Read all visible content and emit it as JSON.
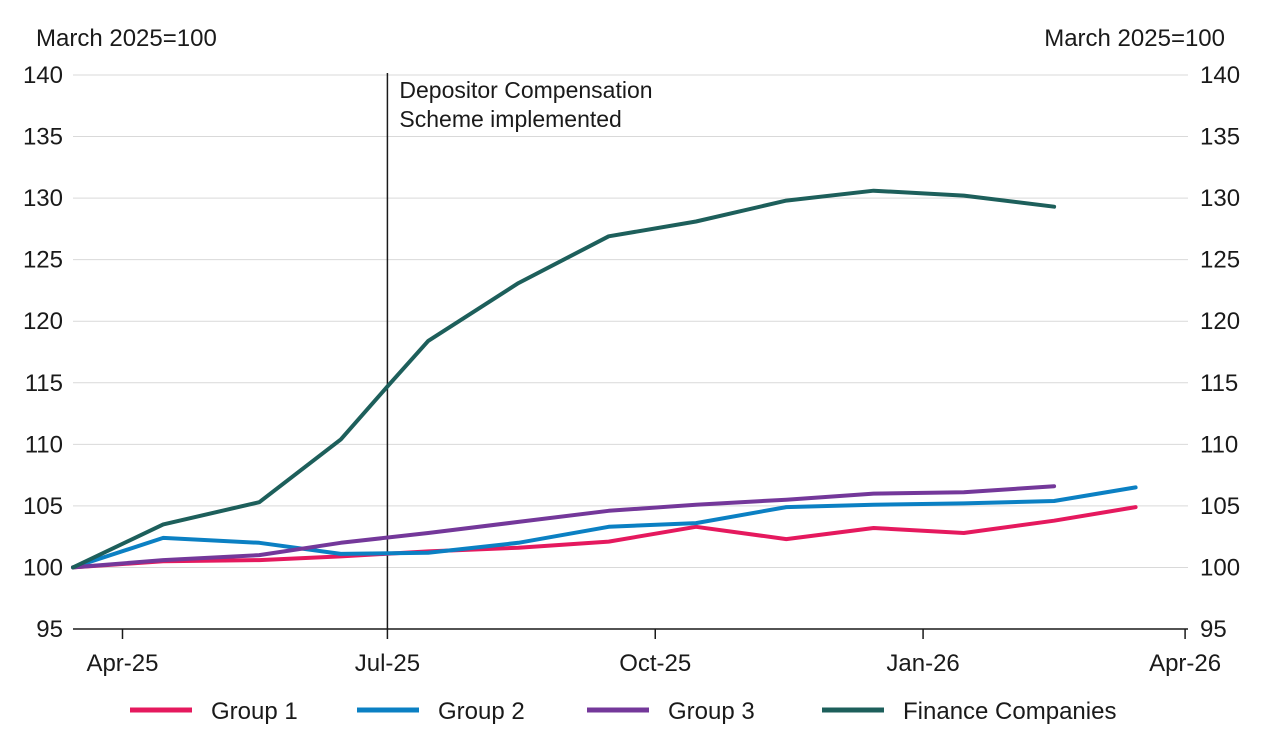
{
  "chart_data": {
    "type": "line",
    "left_unit_label": "March 2025=100",
    "right_unit_label": "March 2025=100",
    "ylim": [
      95,
      140
    ],
    "yticks": [
      95,
      100,
      105,
      110,
      115,
      120,
      125,
      130,
      135,
      140
    ],
    "xticks": [
      {
        "date": "2025-04-01",
        "label": "Apr-25"
      },
      {
        "date": "2025-07-01",
        "label": "Jul-25"
      },
      {
        "date": "2025-10-01",
        "label": "Oct-25"
      },
      {
        "date": "2026-01-01",
        "label": "Jan-26"
      },
      {
        "date": "2026-04-01",
        "label": "Apr-26"
      }
    ],
    "xlim": [
      "2025-03-15",
      "2026-04-02"
    ],
    "grid": "horizontal",
    "legend_position": "bottom",
    "annotation": {
      "date": "2025-07-01",
      "lines": [
        "Depositor Compensation",
        "Scheme implemented"
      ]
    },
    "series": [
      {
        "name": "Group 1",
        "color": "#e5195e",
        "points": [
          [
            "2025-03-15",
            100.0
          ],
          [
            "2025-04-15",
            100.5
          ],
          [
            "2025-05-18",
            100.6
          ],
          [
            "2025-06-15",
            100.9
          ],
          [
            "2025-07-15",
            101.3
          ],
          [
            "2025-08-15",
            101.6
          ],
          [
            "2025-09-15",
            102.1
          ],
          [
            "2025-10-15",
            103.3
          ],
          [
            "2025-11-15",
            102.3
          ],
          [
            "2025-12-15",
            103.2
          ],
          [
            "2026-01-15",
            102.8
          ],
          [
            "2026-02-15",
            103.8
          ],
          [
            "2026-03-15",
            104.9
          ]
        ]
      },
      {
        "name": "Group 2",
        "color": "#0b80c3",
        "points": [
          [
            "2025-03-15",
            100.0
          ],
          [
            "2025-04-15",
            102.4
          ],
          [
            "2025-05-18",
            102.0
          ],
          [
            "2025-06-15",
            101.1
          ],
          [
            "2025-07-15",
            101.2
          ],
          [
            "2025-08-15",
            102.0
          ],
          [
            "2025-09-15",
            103.3
          ],
          [
            "2025-10-15",
            103.6
          ],
          [
            "2025-11-15",
            104.9
          ],
          [
            "2025-12-15",
            105.1
          ],
          [
            "2026-01-15",
            105.2
          ],
          [
            "2026-02-15",
            105.4
          ],
          [
            "2026-03-15",
            106.5
          ]
        ]
      },
      {
        "name": "Group 3",
        "color": "#74389a",
        "points": [
          [
            "2025-03-15",
            100.0
          ],
          [
            "2025-04-15",
            100.6
          ],
          [
            "2025-05-18",
            101.0
          ],
          [
            "2025-06-15",
            102.0
          ],
          [
            "2025-07-15",
            102.8
          ],
          [
            "2025-08-15",
            103.7
          ],
          [
            "2025-09-15",
            104.6
          ],
          [
            "2025-10-15",
            105.1
          ],
          [
            "2025-11-15",
            105.5
          ],
          [
            "2025-12-15",
            106.0
          ],
          [
            "2026-01-15",
            106.1
          ],
          [
            "2026-02-15",
            106.6
          ]
        ]
      },
      {
        "name": "Finance Companies",
        "color": "#1d5f5b",
        "points": [
          [
            "2025-03-15",
            100.0
          ],
          [
            "2025-04-15",
            103.5
          ],
          [
            "2025-05-18",
            105.3
          ],
          [
            "2025-06-15",
            110.4
          ],
          [
            "2025-07-01",
            114.7
          ],
          [
            "2025-07-15",
            118.4
          ],
          [
            "2025-08-15",
            123.1
          ],
          [
            "2025-09-15",
            126.9
          ],
          [
            "2025-10-15",
            128.1
          ],
          [
            "2025-11-15",
            129.8
          ],
          [
            "2025-12-15",
            130.6
          ],
          [
            "2026-01-15",
            130.2
          ],
          [
            "2026-02-15",
            129.3
          ]
        ]
      }
    ]
  }
}
